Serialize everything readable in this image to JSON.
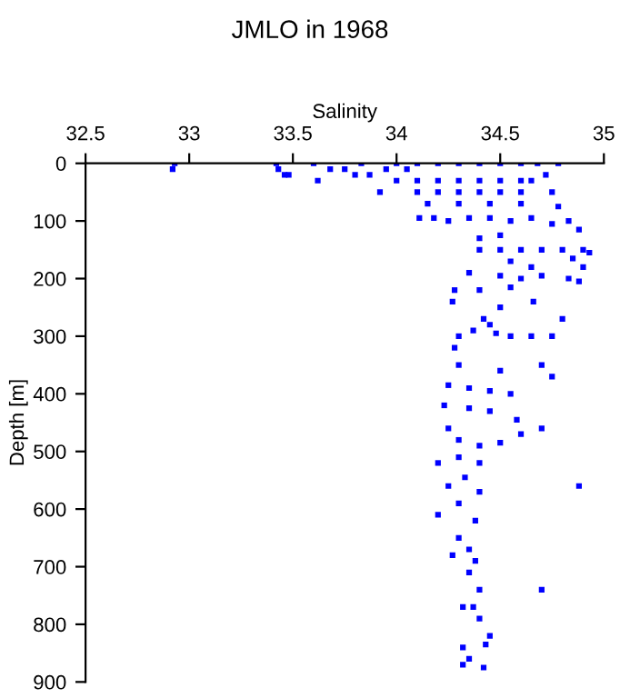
{
  "chart_data": {
    "type": "scatter",
    "title": "JMLO in 1968",
    "xlabel": "Salinity",
    "ylabel": "Depth [m]",
    "xlim": [
      32.5,
      35
    ],
    "xticks": [
      32.5,
      33,
      33.5,
      34,
      34.5,
      35
    ],
    "ylim": [
      900,
      0
    ],
    "yticks": [
      0,
      100,
      200,
      300,
      400,
      500,
      600,
      700,
      800,
      900
    ],
    "marker": "square",
    "grid": false,
    "legend": false,
    "series": [
      {
        "color": "#0000ff",
        "x": [
          32.93,
          32.92,
          33.42,
          33.43,
          33.46,
          33.48,
          33.6,
          33.62,
          33.68,
          33.75,
          33.8,
          33.83,
          33.87,
          33.92,
          33.95,
          34.0,
          34.05,
          34.1,
          34.2,
          34.3,
          34.4,
          34.5,
          34.6,
          34.68,
          34.78,
          34.72,
          34.65,
          34.0,
          34.1,
          34.2,
          34.3,
          34.4,
          34.5,
          34.6,
          34.1,
          34.2,
          34.3,
          34.4,
          34.5,
          34.6,
          34.75,
          34.15,
          34.3,
          34.45,
          34.6,
          34.78,
          34.11,
          34.18,
          34.25,
          34.35,
          34.45,
          34.55,
          34.65,
          34.75,
          34.83,
          34.88,
          34.4,
          34.5,
          34.4,
          34.5,
          34.6,
          34.7,
          34.8,
          34.9,
          34.93,
          34.85,
          34.55,
          34.65,
          34.9,
          34.35,
          34.5,
          34.6,
          34.7,
          34.83,
          34.88,
          34.4,
          34.55,
          34.28,
          34.27,
          34.5,
          34.66,
          34.42,
          34.45,
          34.37,
          34.48,
          34.3,
          34.55,
          34.65,
          34.75,
          34.8,
          34.28,
          34.3,
          34.5,
          34.7,
          34.25,
          34.35,
          34.45,
          34.55,
          34.75,
          34.23,
          34.35,
          34.45,
          34.58,
          34.7,
          34.25,
          34.3,
          34.4,
          34.5,
          34.6,
          34.2,
          34.3,
          34.4,
          34.33,
          34.4,
          34.88,
          34.25,
          34.3,
          34.2,
          34.38,
          34.3,
          34.35,
          34.27,
          34.38,
          34.35,
          34.4,
          34.7,
          34.37,
          34.32,
          34.4,
          34.45,
          34.32,
          34.43,
          34.35,
          34.42,
          34.32
        ],
        "values": [
          0,
          10,
          0,
          10,
          20,
          20,
          0,
          30,
          10,
          10,
          20,
          0,
          20,
          50,
          10,
          0,
          10,
          0,
          0,
          0,
          0,
          0,
          0,
          0,
          0,
          20,
          30,
          30,
          30,
          30,
          30,
          30,
          30,
          30,
          50,
          50,
          50,
          50,
          50,
          50,
          50,
          70,
          70,
          70,
          70,
          75,
          95,
          95,
          100,
          95,
          95,
          100,
          95,
          105,
          100,
          115,
          130,
          125,
          150,
          150,
          150,
          150,
          150,
          150,
          155,
          165,
          170,
          180,
          180,
          190,
          195,
          200,
          195,
          200,
          205,
          220,
          215,
          220,
          240,
          250,
          240,
          270,
          280,
          290,
          295,
          300,
          300,
          300,
          300,
          270,
          320,
          350,
          360,
          350,
          385,
          390,
          395,
          400,
          370,
          420,
          425,
          430,
          445,
          460,
          460,
          480,
          490,
          485,
          470,
          520,
          510,
          520,
          545,
          570,
          560,
          560,
          590,
          610,
          620,
          650,
          670,
          680,
          690,
          710,
          740,
          740,
          770,
          770,
          790,
          820,
          840,
          835,
          860,
          875,
          870
        ]
      }
    ]
  }
}
